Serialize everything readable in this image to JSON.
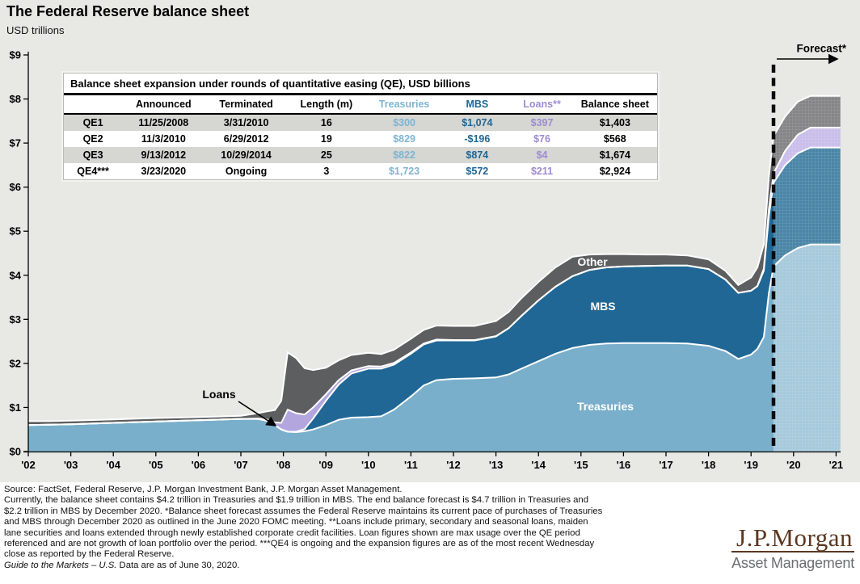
{
  "header": {
    "title": "The Federal Reserve balance sheet",
    "subtitle": "USD trillions"
  },
  "table": {
    "title": "Balance sheet expansion under rounds of quantitative easing (QE), USD billions",
    "columns": [
      "",
      "Announced",
      "Terminated",
      "Length (m)",
      "Treasuries",
      "MBS",
      "Loans**",
      "Balance sheet"
    ],
    "column_colors": [
      "#000000",
      "#000000",
      "#000000",
      "#000000",
      "#7FB4D1",
      "#1F6695",
      "#9C8CD4",
      "#000000"
    ],
    "rows": [
      [
        "QE1",
        "11/25/2008",
        "3/31/2010",
        "16",
        "$300",
        "$1,074",
        "$397",
        "$1,403"
      ],
      [
        "QE2",
        "11/3/2010",
        "6/29/2012",
        "19",
        "$829",
        "-$196",
        "$76",
        "$568"
      ],
      [
        "QE3",
        "9/13/2012",
        "10/29/2014",
        "25",
        "$822",
        "$874",
        "$4",
        "$1,674"
      ],
      [
        "QE4***",
        "3/23/2020",
        "Ongoing",
        "3",
        "$1,723",
        "$572",
        "$211",
        "$2,924"
      ]
    ]
  },
  "chart_data": {
    "type": "area",
    "stacked": true,
    "title": "The Federal Reserve balance sheet",
    "ylabel": "USD trillions",
    "ylim": [
      0,
      9
    ],
    "grid": false,
    "y_ticks": [
      "$0",
      "$1",
      "$2",
      "$3",
      "$4",
      "$5",
      "$6",
      "$7",
      "$8",
      "$9"
    ],
    "x_ticks": [
      "'02",
      "'03",
      "'04",
      "'05",
      "'06",
      "'07",
      "'08",
      "'09",
      "'10",
      "'11",
      "'12",
      "'13",
      "'14",
      "'15",
      "'16",
      "'17",
      "'18",
      "'19",
      "'20",
      "'21"
    ],
    "labels": {
      "other": "Other",
      "mbs": "MBS",
      "treasuries": "Treasuries",
      "loans": "Loans",
      "forecast": "Forecast*"
    },
    "forecast_start": 17.53,
    "series": [
      {
        "name": "Treasuries",
        "color": "#79AFCB",
        "forecast_color": "#A6C9DC"
      },
      {
        "name": "MBS",
        "color": "#206795",
        "forecast_color": "#4A85A6"
      },
      {
        "name": "Loans",
        "color": "#B3A5DE",
        "forecast_color": "#C9BEEA"
      },
      {
        "name": "Other",
        "color": "#5D5E60",
        "forecast_color": "#858588"
      }
    ],
    "points": [
      [
        0.0,
        0.6,
        0,
        0,
        0.09
      ],
      [
        0.5,
        0.61,
        0,
        0,
        0.08
      ],
      [
        1.0,
        0.62,
        0,
        0,
        0.08
      ],
      [
        2.0,
        0.65,
        0,
        0,
        0.08
      ],
      [
        3.0,
        0.68,
        0,
        0,
        0.08
      ],
      [
        4.0,
        0.71,
        0,
        0,
        0.07
      ],
      [
        5.0,
        0.74,
        0,
        0,
        0.07
      ],
      [
        5.4,
        0.74,
        0,
        0.01,
        0.12
      ],
      [
        5.6,
        0.7,
        0,
        0.03,
        0.18
      ],
      [
        5.8,
        0.6,
        0,
        0.06,
        0.28
      ],
      [
        5.95,
        0.5,
        0,
        0.15,
        0.5
      ],
      [
        6.1,
        0.45,
        0,
        0.5,
        1.3
      ],
      [
        6.3,
        0.44,
        0.01,
        0.42,
        1.25
      ],
      [
        6.5,
        0.46,
        0.05,
        0.33,
        1.05
      ],
      [
        6.7,
        0.5,
        0.25,
        0.25,
        0.85
      ],
      [
        7.0,
        0.6,
        0.55,
        0.15,
        0.6
      ],
      [
        7.3,
        0.72,
        0.8,
        0.1,
        0.45
      ],
      [
        7.6,
        0.77,
        1.0,
        0.07,
        0.35
      ],
      [
        8.0,
        0.78,
        1.1,
        0.06,
        0.3
      ],
      [
        8.3,
        0.8,
        1.08,
        0.05,
        0.28
      ],
      [
        8.6,
        0.95,
        1.02,
        0.04,
        0.3
      ],
      [
        9.0,
        1.25,
        0.97,
        0.03,
        0.31
      ],
      [
        9.3,
        1.5,
        0.93,
        0.02,
        0.31
      ],
      [
        9.6,
        1.62,
        0.9,
        0.02,
        0.32
      ],
      [
        10.0,
        1.65,
        0.87,
        0.01,
        0.32
      ],
      [
        10.5,
        1.66,
        0.86,
        0.01,
        0.32
      ],
      [
        11.0,
        1.68,
        0.93,
        0.01,
        0.34
      ],
      [
        11.3,
        1.75,
        1.05,
        0,
        0.37
      ],
      [
        11.6,
        1.88,
        1.2,
        0,
        0.4
      ],
      [
        12.0,
        2.05,
        1.38,
        0,
        0.42
      ],
      [
        12.4,
        2.22,
        1.52,
        0,
        0.44
      ],
      [
        12.8,
        2.35,
        1.63,
        0,
        0.44
      ],
      [
        13.2,
        2.42,
        1.7,
        0,
        0.35
      ],
      [
        13.6,
        2.45,
        1.73,
        0,
        0.3
      ],
      [
        14.0,
        2.46,
        1.74,
        0,
        0.28
      ],
      [
        14.5,
        2.46,
        1.75,
        0,
        0.26
      ],
      [
        15.0,
        2.46,
        1.76,
        0,
        0.25
      ],
      [
        15.5,
        2.45,
        1.77,
        0,
        0.23
      ],
      [
        16.0,
        2.4,
        1.74,
        0,
        0.22
      ],
      [
        16.4,
        2.28,
        1.62,
        0,
        0.2
      ],
      [
        16.7,
        2.1,
        1.5,
        0,
        0.18
      ],
      [
        17.0,
        2.2,
        1.45,
        0,
        0.3
      ],
      [
        17.15,
        2.33,
        1.42,
        0.01,
        0.42
      ],
      [
        17.3,
        2.6,
        1.5,
        0.05,
        0.55
      ],
      [
        17.42,
        3.6,
        1.75,
        0.15,
        0.75
      ],
      [
        17.53,
        4.2,
        1.9,
        0.21,
        0.85
      ],
      [
        17.8,
        4.45,
        2.05,
        0.32,
        0.78
      ],
      [
        18.1,
        4.62,
        2.15,
        0.42,
        0.75
      ],
      [
        18.4,
        4.7,
        2.2,
        0.45,
        0.72
      ],
      [
        19.1,
        4.7,
        2.2,
        0.45,
        0.72
      ]
    ]
  },
  "footer": {
    "lines": [
      "Source: FactSet, Federal Reserve, J.P. Morgan Investment Bank, J.P. Morgan Asset Management.",
      "Currently, the balance sheet contains $4.2 trillion in Treasuries and $1.9 trillion in MBS. The end balance forecast is $4.7 trillion in Treasuries and",
      "$2.2 trillion in MBS by December 2020. *Balance sheet forecast assumes the Federal Reserve maintains its current pace of purchases of Treasuries",
      "and MBS through December 2020 as outlined in the June 2020 FOMC meeting. **Loans include primary, secondary and seasonal loans, maiden",
      "lane securities and loans extended through newly established corporate credit facilities. Loan figures shown are max usage over the QE period",
      "referenced and are not growth of loan portfolio over the period. ***QE4 is ongoing and the expansion figures are as of the most recent Wednesday",
      "close as reported by the Federal Reserve."
    ],
    "gtm_italic": "Guide to the Markets – U.S.",
    "gtm_rest": " Data are as of June 30, 2020."
  },
  "logo": {
    "brand": "J.P.Morgan",
    "sub": "Asset Management"
  }
}
